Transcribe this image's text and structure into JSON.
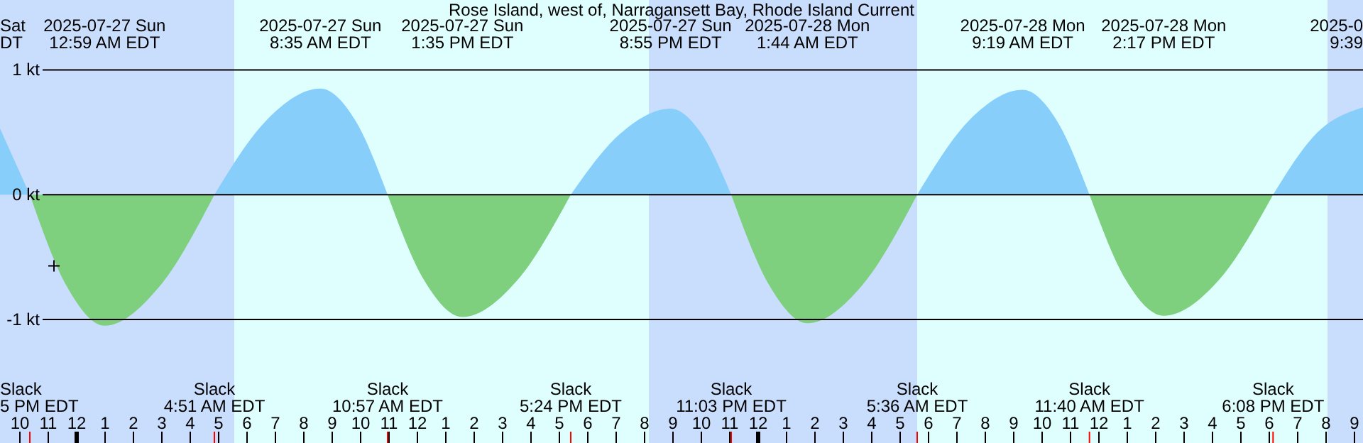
{
  "chart_data": {
    "type": "area",
    "title": "Rose Island, west of, Narragansett Bay, Rhode Island Current",
    "xlim": [
      "2025-07-26T21:18",
      "2025-07-28T21:18"
    ],
    "ylim": [
      -1.99,
      1.56
    ],
    "yticks": [
      {
        "value": 1,
        "label": "1 kt"
      },
      {
        "value": 0,
        "label": "0 kt"
      },
      {
        "value": -1,
        "label": "-1 kt"
      }
    ],
    "xticks": [
      {
        "value": "2025-07-26T22:00",
        "label": "10"
      },
      {
        "value": "2025-07-26T23:00",
        "label": "11"
      },
      {
        "value": "2025-07-27T00:00",
        "label": "12"
      },
      {
        "value": "2025-07-27T01:00",
        "label": "1"
      },
      {
        "value": "2025-07-27T02:00",
        "label": "2"
      },
      {
        "value": "2025-07-27T03:00",
        "label": "3"
      },
      {
        "value": "2025-07-27T04:00",
        "label": "4"
      },
      {
        "value": "2025-07-27T05:00",
        "label": "5"
      },
      {
        "value": "2025-07-27T06:00",
        "label": "6"
      },
      {
        "value": "2025-07-27T07:00",
        "label": "7"
      },
      {
        "value": "2025-07-27T08:00",
        "label": "8"
      },
      {
        "value": "2025-07-27T09:00",
        "label": "9"
      },
      {
        "value": "2025-07-27T10:00",
        "label": "10"
      },
      {
        "value": "2025-07-27T11:00",
        "label": "11"
      },
      {
        "value": "2025-07-27T12:00",
        "label": "12"
      },
      {
        "value": "2025-07-27T13:00",
        "label": "1"
      },
      {
        "value": "2025-07-27T14:00",
        "label": "2"
      },
      {
        "value": "2025-07-27T15:00",
        "label": "3"
      },
      {
        "value": "2025-07-27T16:00",
        "label": "4"
      },
      {
        "value": "2025-07-27T17:00",
        "label": "5"
      },
      {
        "value": "2025-07-27T18:00",
        "label": "6"
      },
      {
        "value": "2025-07-27T19:00",
        "label": "7"
      },
      {
        "value": "2025-07-27T20:00",
        "label": "8"
      },
      {
        "value": "2025-07-27T21:00",
        "label": "9"
      },
      {
        "value": "2025-07-27T22:00",
        "label": "10"
      },
      {
        "value": "2025-07-27T23:00",
        "label": "11"
      },
      {
        "value": "2025-07-28T00:00",
        "label": "12"
      },
      {
        "value": "2025-07-28T01:00",
        "label": "1"
      },
      {
        "value": "2025-07-28T02:00",
        "label": "2"
      },
      {
        "value": "2025-07-28T03:00",
        "label": "3"
      },
      {
        "value": "2025-07-28T04:00",
        "label": "4"
      },
      {
        "value": "2025-07-28T05:00",
        "label": "5"
      },
      {
        "value": "2025-07-28T06:00",
        "label": "6"
      },
      {
        "value": "2025-07-28T07:00",
        "label": "7"
      },
      {
        "value": "2025-07-28T08:00",
        "label": "8"
      },
      {
        "value": "2025-07-28T09:00",
        "label": "9"
      },
      {
        "value": "2025-07-28T10:00",
        "label": "10"
      },
      {
        "value": "2025-07-28T11:00",
        "label": "11"
      },
      {
        "value": "2025-07-28T12:00",
        "label": "12"
      },
      {
        "value": "2025-07-28T13:00",
        "label": "1"
      },
      {
        "value": "2025-07-28T14:00",
        "label": "2"
      },
      {
        "value": "2025-07-28T15:00",
        "label": "3"
      },
      {
        "value": "2025-07-28T16:00",
        "label": "4"
      },
      {
        "value": "2025-07-28T17:00",
        "label": "5"
      },
      {
        "value": "2025-07-28T18:00",
        "label": "6"
      },
      {
        "value": "2025-07-28T19:00",
        "label": "7"
      },
      {
        "value": "2025-07-28T20:00",
        "label": "8"
      },
      {
        "value": "2025-07-28T21:00",
        "label": "9"
      }
    ],
    "grid": "y",
    "bands": [
      {
        "axis": "x",
        "from": "2025-07-26T21:18",
        "to": "2025-07-27T05:33",
        "color": "#c9ddfd"
      },
      {
        "axis": "x",
        "from": "2025-07-27T20:09",
        "to": "2025-07-28T05:36",
        "color": "#c9ddfd"
      },
      {
        "axis": "x",
        "from": "2025-07-28T20:03",
        "to": "2025-07-28T21:18",
        "color": "#c9ddfd"
      }
    ],
    "series": [
      {
        "color": "#87cefa",
        "x": [
          "2025-07-26T21:18",
          "2025-07-26T22:21",
          null,
          "2025-07-27T04:51",
          "2025-07-27T06:42",
          "2025-07-27T08:35",
          "2025-07-27T09:48",
          "2025-07-27T10:57",
          null,
          "2025-07-27T17:24",
          "2025-07-27T19:09",
          "2025-07-27T20:55",
          "2025-07-27T22:00",
          "2025-07-27T23:03",
          null,
          "2025-07-28T05:36",
          "2025-07-28T07:27",
          "2025-07-28T09:19",
          "2025-07-28T10:30",
          "2025-07-28T11:40",
          null,
          "2025-07-28T18:08",
          "2025-07-28T19:42",
          "2025-07-28T21:18"
        ],
        "values": [
          0.53,
          0,
          null,
          0,
          0.6,
          0.85,
          0.6,
          0,
          null,
          0,
          0.49,
          0.69,
          0.49,
          0,
          null,
          0,
          0.6,
          0.84,
          0.6,
          0,
          null,
          0,
          0.5,
          0.7
        ]
      },
      {
        "color": "#7ed07e",
        "x": [
          "2025-07-26T22:21",
          "2025-07-26T23:40",
          "2025-07-27T00:59",
          "2025-07-27T02:54",
          "2025-07-27T04:51",
          null,
          "2025-07-27T10:57",
          "2025-07-27T12:15",
          "2025-07-27T13:35",
          "2025-07-27T15:30",
          "2025-07-27T17:24",
          null,
          "2025-07-27T23:03",
          "2025-07-28T00:24",
          "2025-07-28T01:44",
          "2025-07-28T03:39",
          "2025-07-28T05:36",
          null,
          "2025-07-28T11:40",
          "2025-07-28T12:58",
          "2025-07-28T14:17",
          "2025-07-28T16:12",
          "2025-07-28T18:08"
        ],
        "values": [
          0,
          -0.74,
          -1.05,
          -0.74,
          0,
          null,
          0,
          -0.69,
          -0.98,
          -0.69,
          0,
          null,
          0,
          -0.73,
          -1.03,
          -0.73,
          0,
          null,
          0,
          -0.69,
          -0.97,
          -0.69,
          0
        ]
      },
      {
        "type": "scatter",
        "marker": "cross",
        "color": "#000000",
        "x": [
          "2025-07-26T23:12"
        ],
        "values": [
          -0.57
        ]
      }
    ],
    "annotations": [
      "Sat\nDT",
      "2025-0\n9:39",
      "2025-07-27 Sun\n12:59 AM EDT",
      "2025-07-27 Sun\n8:35 AM EDT",
      "2025-07-27 Sun\n1:35 PM EDT",
      "2025-07-27 Sun\n8:55 PM EDT",
      "2025-07-28 Mon\n1:44 AM EDT",
      "2025-07-28 Mon\n9:19 AM EDT",
      "2025-07-28 Mon\n2:17 PM EDT",
      "Slack\n5 PM EDT",
      "Slack\n4:51 AM EDT",
      "Slack\n10:57 AM EDT",
      "Slack\n5:24 PM EDT",
      "Slack\n11:03 PM EDT",
      "Slack\n5:36 AM EDT",
      "Slack\n11:40 AM EDT",
      "Slack\n6:08 PM EDT"
    ]
  }
}
